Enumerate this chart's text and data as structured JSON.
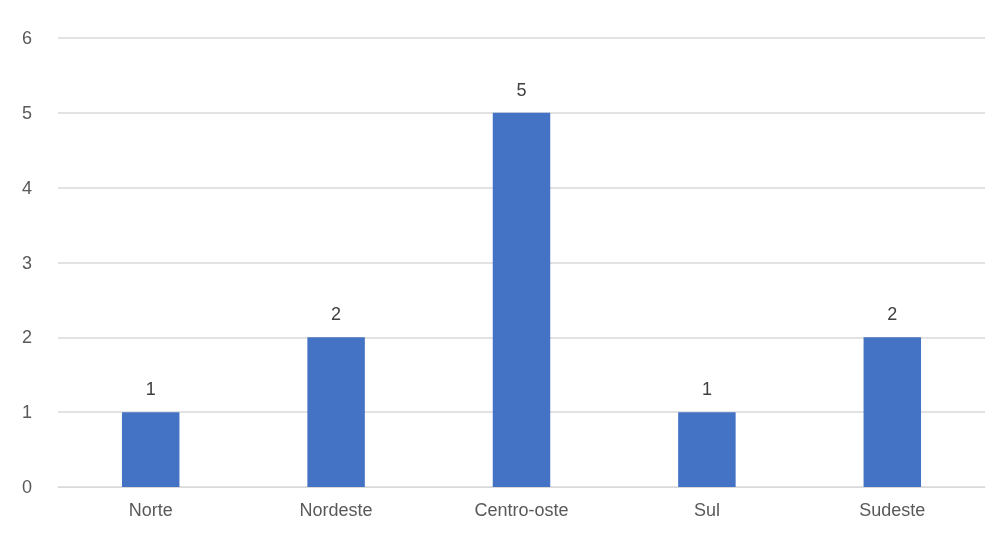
{
  "chart_data": {
    "type": "bar",
    "categories": [
      "Norte",
      "Nordeste",
      "Centro-oste",
      "Sul",
      "Sudeste"
    ],
    "values": [
      1,
      2,
      5,
      1,
      2
    ],
    "color": "#4472c4",
    "ylim": [
      0,
      6
    ],
    "yticks": [
      0,
      1,
      2,
      3,
      4,
      5,
      6
    ],
    "grid": "y",
    "data_labels": true
  }
}
